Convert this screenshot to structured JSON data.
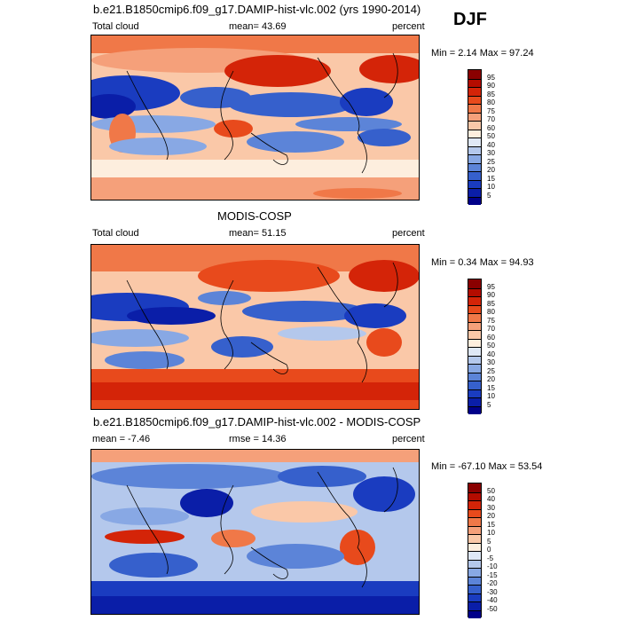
{
  "season": "DJF",
  "panels": [
    {
      "title": "b.e21.B1850cmip6.f09_g17.DAMIP-hist-vlc.002 (yrs 1990-2014)",
      "left_label": "Total cloud",
      "center_label": "mean=  43.69",
      "right_label": "percent",
      "minmax": "Min =  2.14 Max =  97.24",
      "levels": [
        "95",
        "90",
        "85",
        "80",
        "75",
        "70",
        "60",
        "50",
        "40",
        "30",
        "25",
        "20",
        "15",
        "10",
        "5"
      ],
      "colors": [
        "#8a0000",
        "#b40c00",
        "#d42408",
        "#e84a1c",
        "#f07848",
        "#f5a07a",
        "#fac8a8",
        "#fdeede",
        "#dfe8f6",
        "#b4c8ec",
        "#88a8e4",
        "#5c84d8",
        "#3660cc",
        "#1a3cc0",
        "#0a1ea8",
        "#00008a"
      ]
    },
    {
      "title": "MODIS-COSP",
      "left_label": "Total cloud",
      "center_label": "mean=  51.15",
      "right_label": "percent",
      "minmax": "Min =  0.34 Max =  94.93",
      "levels": [
        "95",
        "90",
        "85",
        "80",
        "75",
        "70",
        "60",
        "50",
        "40",
        "30",
        "25",
        "20",
        "15",
        "10",
        "5"
      ],
      "colors": [
        "#8a0000",
        "#b40c00",
        "#d42408",
        "#e84a1c",
        "#f07848",
        "#f5a07a",
        "#fac8a8",
        "#fdeede",
        "#dfe8f6",
        "#b4c8ec",
        "#88a8e4",
        "#5c84d8",
        "#3660cc",
        "#1a3cc0",
        "#0a1ea8",
        "#00008a"
      ]
    },
    {
      "title": "b.e21.B1850cmip6.f09_g17.DAMIP-hist-vlc.002 - MODIS-COSP",
      "left_label": "mean =  -7.46",
      "center_label": "rmse =  14.36",
      "right_label": "percent",
      "minmax": "Min = -67.10 Max =  53.54",
      "levels": [
        "50",
        "40",
        "30",
        "20",
        "15",
        "10",
        "5",
        "0",
        "-5",
        "-10",
        "-15",
        "-20",
        "-30",
        "-40",
        "-50"
      ],
      "colors": [
        "#8a0000",
        "#b40c00",
        "#d42408",
        "#e84a1c",
        "#f07848",
        "#f5a07a",
        "#fac8a8",
        "#fdeede",
        "#dfe8f6",
        "#b4c8ec",
        "#88a8e4",
        "#5c84d8",
        "#3660cc",
        "#1a3cc0",
        "#0a1ea8",
        "#00008a"
      ]
    }
  ]
}
